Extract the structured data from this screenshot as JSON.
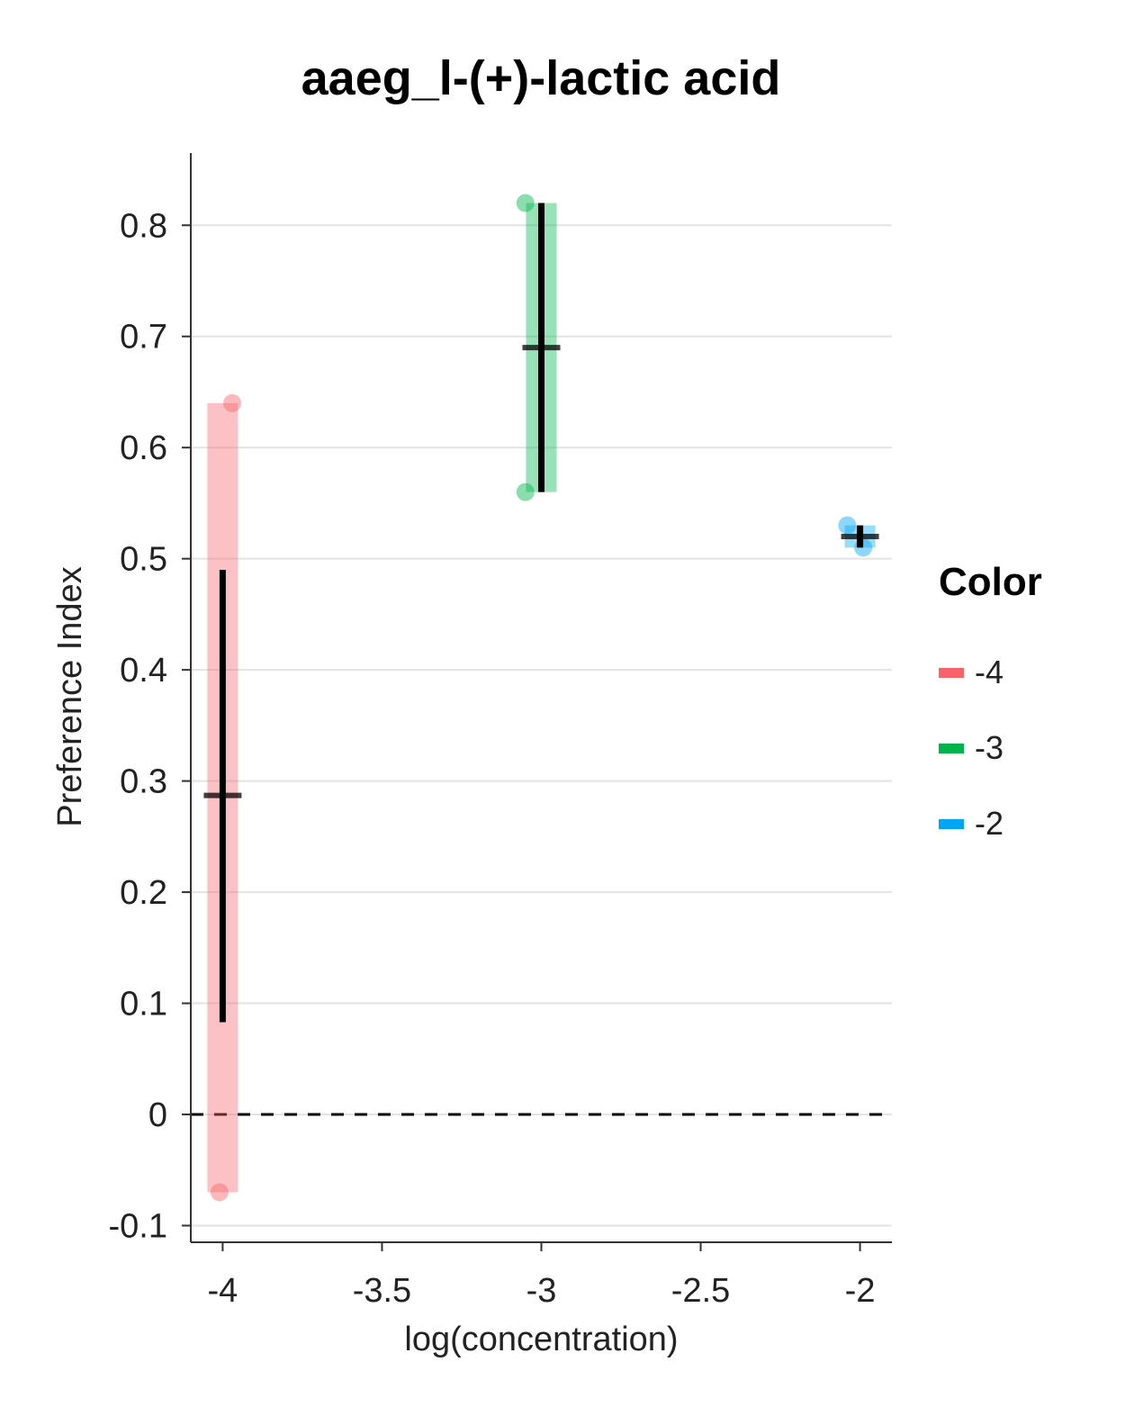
{
  "chart_data": {
    "type": "scatter",
    "title": "aaeg_l-(+)-lactic acid",
    "xlabel": "log(concentration)",
    "ylabel": "Preference Index",
    "xlim": [
      -4.1,
      -1.9
    ],
    "ylim": [
      -0.115,
      0.865
    ],
    "x_ticks": [
      -4,
      -3.5,
      -3,
      -2.5,
      -2
    ],
    "x_tick_labels": [
      "-4",
      "-3.5",
      "-3",
      "-2.5",
      "-2"
    ],
    "y_ticks": [
      -0.1,
      0,
      0.1,
      0.2,
      0.3,
      0.4,
      0.5,
      0.6,
      0.7,
      0.8
    ],
    "y_tick_labels": [
      "-0.1",
      "0",
      "0.1",
      "0.2",
      "0.3",
      "0.4",
      "0.5",
      "0.6",
      "0.7",
      "0.8"
    ],
    "grid": "horizontal",
    "reference_line": {
      "y": 0,
      "style": "dashed"
    },
    "legend": {
      "title": "Color",
      "placement": "right"
    },
    "series": [
      {
        "name": "-4",
        "color": "#F8636B",
        "points": [
          {
            "x": -3.97,
            "y": 0.64
          },
          {
            "x": -4.01,
            "y": -0.07
          }
        ],
        "range": [
          -0.07,
          0.64
        ],
        "mean": 0.287,
        "error": [
          0.083,
          0.49
        ]
      },
      {
        "name": "-3",
        "color": "#00B34A",
        "points": [
          {
            "x": -3.05,
            "y": 0.82
          },
          {
            "x": -3.05,
            "y": 0.56
          }
        ],
        "range": [
          0.56,
          0.82
        ],
        "mean": 0.69,
        "error": [
          0.56,
          0.82
        ]
      },
      {
        "name": "-2",
        "color": "#00A6F5",
        "points": [
          {
            "x": -2.04,
            "y": 0.53
          },
          {
            "x": -1.99,
            "y": 0.51
          }
        ],
        "range": [
          0.51,
          0.53
        ],
        "mean": 0.52,
        "error": [
          0.51,
          0.53
        ]
      }
    ]
  }
}
